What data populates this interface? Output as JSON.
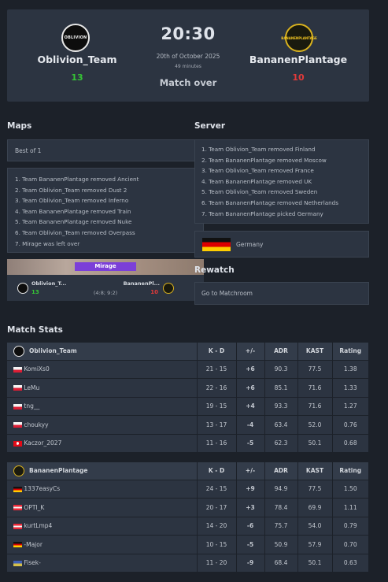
{
  "header": {
    "team1": {
      "name": "Oblivion_Team",
      "score": "13",
      "logo_text": "OBLIVION"
    },
    "team2": {
      "name": "BananenPlantage",
      "score": "10",
      "logo_text": "BANANENPLANTAGE"
    },
    "time": "20:30",
    "date": "20th of October 2025",
    "duration": "49 minutes",
    "status": "Match over"
  },
  "maps": {
    "title": "Maps",
    "format": "Best of 1",
    "veto": [
      "1. Team BananenPlantage removed Ancient",
      "2. Team Oblivion_Team removed Dust 2",
      "3. Team Oblivion_Team removed Inferno",
      "4. Team BananenPlantage removed Train",
      "5. Team BananenPlantage removed Nuke",
      "6. Team Oblivion_Team removed Overpass",
      "7. Mirage was left over"
    ],
    "map_card": {
      "map_name": "Mirage",
      "team1_name": "Oblivion_T...",
      "team1_score": "13",
      "team2_name": "BananenPl...",
      "team2_score": "10",
      "halves": "(4:8; 9:2)"
    }
  },
  "server": {
    "title": "Server",
    "veto": [
      "1. Team Oblivion_Team removed Finland",
      "2. Team BananenPlantage removed Moscow",
      "3. Team Oblivion_Team removed France",
      "4. Team BananenPlantage removed UK",
      "5. Team Oblivion_Team removed Sweden",
      "6. Team BananenPlantage removed Netherlands",
      "7. Team BananenPlantage picked Germany"
    ],
    "location": "Germany"
  },
  "rewatch": {
    "title": "Rewatch",
    "button_label": "Go to Matchroom"
  },
  "stats": {
    "title": "Match Stats",
    "columns": [
      "K - D",
      "+/-",
      "ADR",
      "KAST",
      "Rating"
    ],
    "teams": [
      {
        "name": "Oblivion_Team",
        "players": [
          {
            "flag": "pl",
            "name": "KomiXs0",
            "kd": "21 - 15",
            "diff": "+6",
            "adr": "90.3",
            "kast": "77.5",
            "rating": "1.38"
          },
          {
            "flag": "pl",
            "name": "LeMu",
            "kd": "22 - 16",
            "diff": "+6",
            "adr": "85.1",
            "kast": "71.6",
            "rating": "1.33"
          },
          {
            "flag": "pl",
            "name": "tng__",
            "kd": "19 - 15",
            "diff": "+4",
            "adr": "93.3",
            "kast": "71.6",
            "rating": "1.27"
          },
          {
            "flag": "pl",
            "name": "choukyy",
            "kd": "13 - 17",
            "diff": "-4",
            "adr": "63.4",
            "kast": "52.0",
            "rating": "0.76"
          },
          {
            "flag": "tr",
            "name": "Kaczor_2027",
            "kd": "11 - 16",
            "diff": "-5",
            "adr": "62.3",
            "kast": "50.1",
            "rating": "0.68"
          }
        ]
      },
      {
        "name": "BananenPlantage",
        "players": [
          {
            "flag": "de",
            "name": "1337easyCs",
            "kd": "24 - 15",
            "diff": "+9",
            "adr": "94.9",
            "kast": "77.5",
            "rating": "1.50"
          },
          {
            "flag": "at",
            "name": "OPTI_K",
            "kd": "20 - 17",
            "diff": "+3",
            "adr": "78.4",
            "kast": "69.9",
            "rating": "1.11"
          },
          {
            "flag": "at",
            "name": "kurtLmp4",
            "kd": "14 - 20",
            "diff": "-6",
            "adr": "75.7",
            "kast": "54.0",
            "rating": "0.79"
          },
          {
            "flag": "de",
            "name": "-Major",
            "kd": "10 - 15",
            "diff": "-5",
            "adr": "50.9",
            "kast": "57.9",
            "rating": "0.70"
          },
          {
            "flag": "ua",
            "name": "Fisek-",
            "kd": "11 - 20",
            "diff": "-9",
            "adr": "68.4",
            "kast": "50.1",
            "rating": "0.63"
          }
        ]
      }
    ]
  }
}
